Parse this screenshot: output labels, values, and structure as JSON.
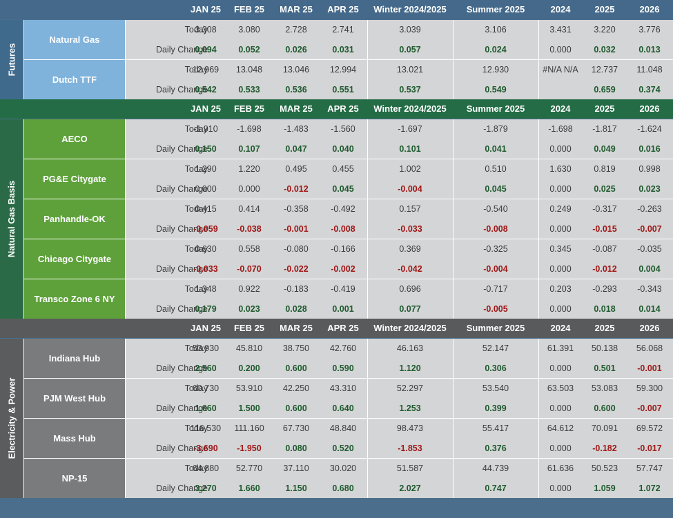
{
  "colors": {
    "futures_header": "#44698a",
    "futures_name": "#7fb3dc",
    "futures_label": "#3f6a8c",
    "basis_header": "#236c45",
    "basis_name": "#5ea13b",
    "basis_label": "#2a6a46",
    "power_header": "#595a5c",
    "power_name": "#7a7b7d",
    "power_label": "#5b5c5e",
    "positive": "#1e5a2e",
    "negative": "#a01818"
  },
  "columns": [
    "JAN 25",
    "FEB 25",
    "MAR 25",
    "APR 25",
    "Winter 2024/2025",
    "Summer 2025",
    "2024",
    "2025",
    "2026"
  ],
  "row_labels": {
    "today": "Today",
    "change": "Daily Change"
  },
  "sections": [
    {
      "title": "Futures",
      "theme": "futures",
      "items": [
        {
          "name": "Natural Gas",
          "today": [
            "3.308",
            "3.080",
            "2.728",
            "2.741",
            "3.039",
            "3.106",
            "3.431",
            "3.220",
            "3.776"
          ],
          "change": [
            "0.094",
            "0.052",
            "0.026",
            "0.031",
            "0.057",
            "0.024",
            "0.000",
            "0.032",
            "0.013"
          ]
        },
        {
          "name": "Dutch TTF",
          "today": [
            "12.969",
            "13.048",
            "13.046",
            "12.994",
            "13.021",
            "12.930",
            "#N/A N/A",
            "12.737",
            "11.048"
          ],
          "change": [
            "0.542",
            "0.533",
            "0.536",
            "0.551",
            "0.537",
            "0.549",
            "",
            "0.659",
            "0.374"
          ]
        }
      ]
    },
    {
      "title": "Natural Gas Basis",
      "theme": "basis",
      "items": [
        {
          "name": "AECO",
          "today": [
            "-1.910",
            "-1.698",
            "-1.483",
            "-1.560",
            "-1.697",
            "-1.879",
            "-1.698",
            "-1.817",
            "-1.624"
          ],
          "change": [
            "0.150",
            "0.107",
            "0.047",
            "0.040",
            "0.101",
            "0.041",
            "0.000",
            "0.049",
            "0.016"
          ]
        },
        {
          "name": "PG&E Citygate",
          "today": [
            "1.290",
            "1.220",
            "0.495",
            "0.455",
            "1.002",
            "0.510",
            "1.630",
            "0.819",
            "0.998"
          ],
          "change": [
            "0.000",
            "0.000",
            "-0.012",
            "0.045",
            "-0.004",
            "0.045",
            "0.000",
            "0.025",
            "0.023"
          ]
        },
        {
          "name": "Panhandle-OK",
          "today": [
            "0.415",
            "0.414",
            "-0.358",
            "-0.492",
            "0.157",
            "-0.540",
            "0.249",
            "-0.317",
            "-0.263"
          ],
          "change": [
            "-0.059",
            "-0.038",
            "-0.001",
            "-0.008",
            "-0.033",
            "-0.008",
            "0.000",
            "-0.015",
            "-0.007"
          ]
        },
        {
          "name": "Chicago Citygate",
          "today": [
            "0.630",
            "0.558",
            "-0.080",
            "-0.166",
            "0.369",
            "-0.325",
            "0.345",
            "-0.087",
            "-0.035"
          ],
          "change": [
            "-0.033",
            "-0.070",
            "-0.022",
            "-0.002",
            "-0.042",
            "-0.004",
            "0.000",
            "-0.012",
            "0.004"
          ]
        },
        {
          "name": "Transco Zone 6 NY",
          "today": [
            "1.348",
            "0.922",
            "-0.183",
            "-0.419",
            "0.696",
            "-0.717",
            "0.203",
            "-0.293",
            "-0.343"
          ],
          "change": [
            "0.179",
            "0.023",
            "0.028",
            "0.001",
            "0.077",
            "-0.005",
            "0.000",
            "0.018",
            "0.014"
          ]
        }
      ]
    },
    {
      "title": "Electricity & Power",
      "theme": "power",
      "items": [
        {
          "name": "Indiana Hub",
          "today": [
            "53.930",
            "45.810",
            "38.750",
            "42.760",
            "46.163",
            "52.147",
            "61.391",
            "50.138",
            "56.068"
          ],
          "change": [
            "2.560",
            "0.200",
            "0.600",
            "0.590",
            "1.120",
            "0.306",
            "0.000",
            "0.501",
            "-0.001"
          ]
        },
        {
          "name": "PJM West Hub",
          "today": [
            "60.730",
            "53.910",
            "42.250",
            "43.310",
            "52.297",
            "53.540",
            "63.503",
            "53.083",
            "59.300"
          ],
          "change": [
            "1.660",
            "1.500",
            "0.600",
            "0.640",
            "1.253",
            "0.399",
            "0.000",
            "0.600",
            "-0.007"
          ]
        },
        {
          "name": "Mass Hub",
          "today": [
            "116.530",
            "111.160",
            "67.730",
            "48.840",
            "98.473",
            "55.417",
            "64.612",
            "70.091",
            "69.572"
          ],
          "change": [
            "-3.690",
            "-1.950",
            "0.080",
            "0.520",
            "-1.853",
            "0.376",
            "0.000",
            "-0.182",
            "-0.017"
          ]
        },
        {
          "name": "NP-15",
          "today": [
            "64.880",
            "52.770",
            "37.110",
            "30.020",
            "51.587",
            "44.739",
            "61.636",
            "50.523",
            "57.747"
          ],
          "change": [
            "3.270",
            "1.660",
            "1.150",
            "0.680",
            "2.027",
            "0.747",
            "0.000",
            "1.059",
            "1.072"
          ]
        }
      ]
    }
  ]
}
